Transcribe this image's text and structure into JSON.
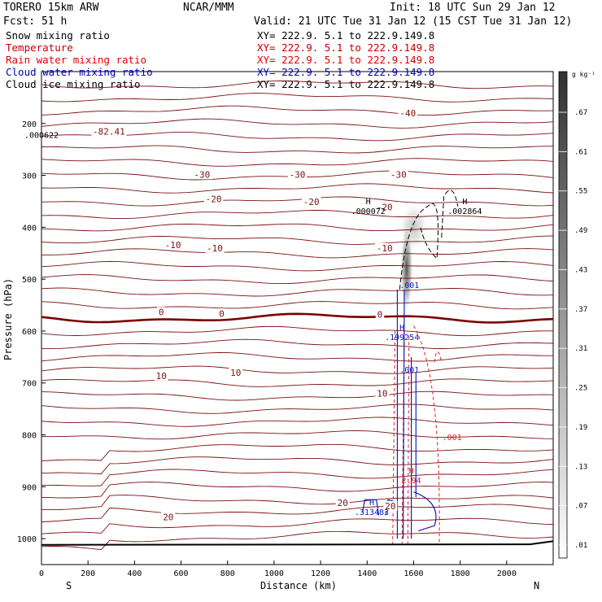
{
  "header": {
    "model_label": "TORERO  15km ARW",
    "org": "NCAR/MMM",
    "init": "Init: 18 UTC Sun 29 Jan 12",
    "fcst": "Fcst:   51 h",
    "valid": "Valid: 21 UTC Tue 31 Jan 12 (15 CST Tue 31 Jan 12)"
  },
  "fields": [
    {
      "name": "Snow mixing ratio",
      "xy": "XY= 222.9.  5.1 to 222.9.149.8",
      "color": "#000000"
    },
    {
      "name": "Temperature",
      "xy": "XY= 222.9.  5.1 to 222.9.149.8",
      "color": "#c00000"
    },
    {
      "name": "Rain water mixing ratio",
      "xy": "XY= 222.9.  5.1 to 222.9.149.8",
      "color": "#e00000"
    },
    {
      "name": "Cloud water mixing ratio",
      "xy": "XY= 222.9.  5.1 to 222.9.149.8",
      "color": "#0000c0"
    },
    {
      "name": "Cloud ice mixing ratio",
      "xy": "XY= 222.9.  5.1 to 222.9.149.8",
      "color": "#000000"
    }
  ],
  "colors": {
    "temperature": "#7a1010",
    "freezing": "#7a0000",
    "rain": "#e02020",
    "cloud_water": "#1020c0",
    "snow": "#000000",
    "ground": "#000000"
  },
  "chart_data": {
    "type": "cross-section",
    "xlabel": "Distance (km)",
    "ylabel": "Pressure (hPa)",
    "xlim": [
      0,
      2200
    ],
    "ylim": [
      1050,
      100
    ],
    "x_ticks": [
      0,
      200,
      400,
      600,
      800,
      1000,
      1200,
      1400,
      1600,
      1800,
      2000
    ],
    "y_ticks": [
      200,
      300,
      400,
      500,
      600,
      700,
      800,
      900,
      1000
    ],
    "endpoints": {
      "left": "S",
      "right": "N"
    },
    "colorbar": {
      "unit": "g kg⁻¹",
      "labels": [
        ".67",
        ".61",
        ".55",
        ".49",
        ".43",
        ".37",
        ".31",
        ".25",
        ".19",
        ".13",
        ".07",
        ".01"
      ]
    },
    "temperature_labels": [
      {
        "x": 290,
        "p": 215,
        "text": "-82.41"
      },
      {
        "x": 1575,
        "p": 180,
        "text": "-40"
      },
      {
        "x": 690,
        "p": 298,
        "text": "-30"
      },
      {
        "x": 1100,
        "p": 298,
        "text": "-30"
      },
      {
        "x": 1535,
        "p": 298,
        "text": "-30"
      },
      {
        "x": 740,
        "p": 345,
        "text": "-20"
      },
      {
        "x": 1160,
        "p": 351,
        "text": "-20"
      },
      {
        "x": 1475,
        "p": 361,
        "text": "-20"
      },
      {
        "x": 565,
        "p": 434,
        "text": "-10"
      },
      {
        "x": 745,
        "p": 440,
        "text": "-10"
      },
      {
        "x": 1475,
        "p": 440,
        "text": "-10"
      },
      {
        "x": 515,
        "p": 563,
        "text": "0"
      },
      {
        "x": 775,
        "p": 566,
        "text": "0"
      },
      {
        "x": 1455,
        "p": 568,
        "text": "0"
      },
      {
        "x": 515,
        "p": 686,
        "text": "10"
      },
      {
        "x": 835,
        "p": 680,
        "text": "10"
      },
      {
        "x": 1465,
        "p": 720,
        "text": "10"
      },
      {
        "x": 545,
        "p": 958,
        "text": "20"
      },
      {
        "x": 1295,
        "p": 931,
        "text": "20"
      },
      {
        "x": 1500,
        "p": 937,
        "text": "20"
      }
    ],
    "extrema": [
      {
        "x": 1405,
        "p": 365,
        "label": "H",
        "value": ".000072"
      },
      {
        "x": 1820,
        "p": 365,
        "label": "H",
        "value": ".002864"
      },
      {
        "x": 1550,
        "p": 608,
        "label": "H",
        "value": ".199254"
      },
      {
        "x": 1420,
        "p": 945,
        "label": "H",
        "value": ".313483"
      },
      {
        "x": 1590,
        "p": 884,
        "label": "H",
        "value": "2.94"
      },
      {
        "x": 0,
        "p": 218,
        "label": "",
        "value": ".000622"
      }
    ],
    "contour_labels": [
      {
        "x": 1582,
        "p": 517,
        "text": ".001",
        "color": "#1020c0"
      },
      {
        "x": 1582,
        "p": 680,
        "text": ".001",
        "color": "#1020c0"
      },
      {
        "x": 1765,
        "p": 810,
        "text": ".001",
        "color": "#e02020"
      }
    ]
  }
}
